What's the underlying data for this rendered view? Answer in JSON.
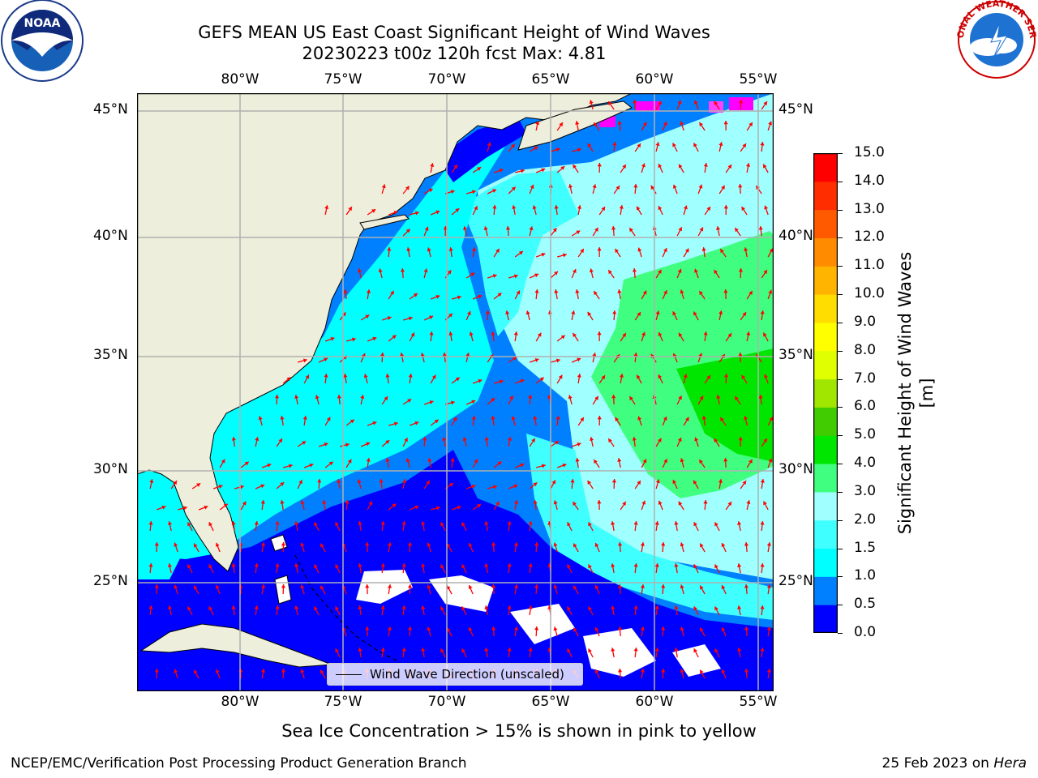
{
  "title_line1": "GEFS MEAN US East Coast Significant Height of Wind Waves",
  "title_line2": "20230223 t00z 120h fcst   Max: 4.81",
  "lon_labels": [
    "80°W",
    "75°W",
    "70°W",
    "65°W",
    "60°W",
    "55°W"
  ],
  "lat_labels": [
    "45°N",
    "40°N",
    "35°N",
    "30°N",
    "25°N"
  ],
  "colorbar": {
    "title": "Significant Height of Wind Waves [m]",
    "ticks": [
      "0.0",
      "0.5",
      "1.0",
      "1.5",
      "2.0",
      "3.0",
      "4.0",
      "5.0",
      "6.0",
      "7.0",
      "8.0",
      "9.0",
      "10.0",
      "11.0",
      "12.0",
      "13.0",
      "14.0",
      "15.0"
    ],
    "colors": [
      "#0000ff",
      "#0080ff",
      "#00ffff",
      "#40ffff",
      "#a0ffff",
      "#40ff80",
      "#00e600",
      "#40cc00",
      "#a0e600",
      "#e0ff00",
      "#ffff00",
      "#ffdd00",
      "#ffb400",
      "#ff8c00",
      "#ff5a00",
      "#ff2d00",
      "#ff0000"
    ]
  },
  "map": {
    "land_color": "#eeeedc",
    "ice_color": "#ff00ff",
    "arrow_color": "#ff0000",
    "grid_color": "#b0b0b0"
  },
  "legend_label": "Wind Wave Direction (unscaled)",
  "note": "Sea Ice Concentration > 15% is shown in pink to yellow",
  "footer_left": "NCEP/EMC/Verification Post Processing Product Generation Branch",
  "footer_date": "25 Feb 2023 on",
  "footer_host": "Hera",
  "logos": {
    "left": "NOAA",
    "right": "NATIONAL WEATHER SERVICE"
  }
}
